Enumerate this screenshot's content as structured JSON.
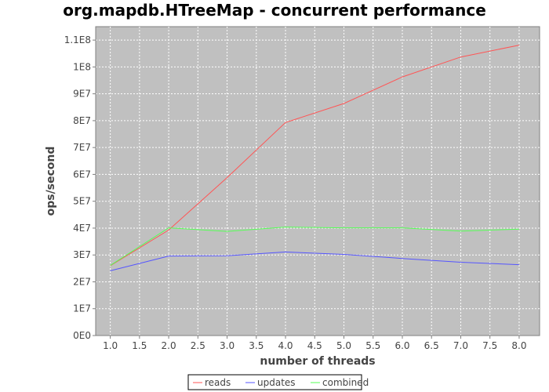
{
  "chart_data": {
    "type": "line",
    "title": "org.mapdb.HTreeMap - concurrent performance",
    "xlabel": "number of threads",
    "ylabel": "ops/second",
    "xlim": [
      0.75,
      8.35
    ],
    "ylim": [
      0,
      115000000
    ],
    "x_ticks": [
      1.0,
      1.5,
      2.0,
      2.5,
      3.0,
      3.5,
      4.0,
      4.5,
      5.0,
      5.5,
      6.0,
      6.5,
      7.0,
      7.5,
      8.0
    ],
    "x_tick_labels": [
      "1.0",
      "1.5",
      "2.0",
      "2.5",
      "3.0",
      "3.5",
      "4.0",
      "4.5",
      "5.0",
      "5.5",
      "6.0",
      "6.5",
      "7.0",
      "7.5",
      "8.0"
    ],
    "y_ticks": [
      0,
      10000000,
      20000000,
      30000000,
      40000000,
      50000000,
      60000000,
      70000000,
      80000000,
      90000000,
      100000000,
      110000000
    ],
    "y_tick_labels": [
      "0E0",
      "1E7",
      "2E7",
      "3E7",
      "4E7",
      "5E7",
      "6E7",
      "7E7",
      "8E7",
      "9E7",
      "1E8",
      "1.1E8"
    ],
    "grid": true,
    "legend_position": "bottom",
    "plot_background": "#c0c0c0",
    "x": [
      1,
      2,
      3,
      4,
      5,
      6,
      7,
      8
    ],
    "series": [
      {
        "name": "reads",
        "color": "#ff5555",
        "values": [
          26000000,
          39300000,
          58800000,
          79300000,
          86400000,
          96300000,
          103700000,
          108100000
        ]
      },
      {
        "name": "updates",
        "color": "#5555ff",
        "values": [
          24100000,
          29600000,
          29700000,
          31100000,
          30200000,
          28700000,
          27300000,
          26400000
        ]
      },
      {
        "name": "combined",
        "color": "#55ff55",
        "values": [
          26100000,
          40100000,
          38800000,
          40400000,
          40100000,
          40100000,
          38900000,
          39600000
        ]
      }
    ]
  }
}
